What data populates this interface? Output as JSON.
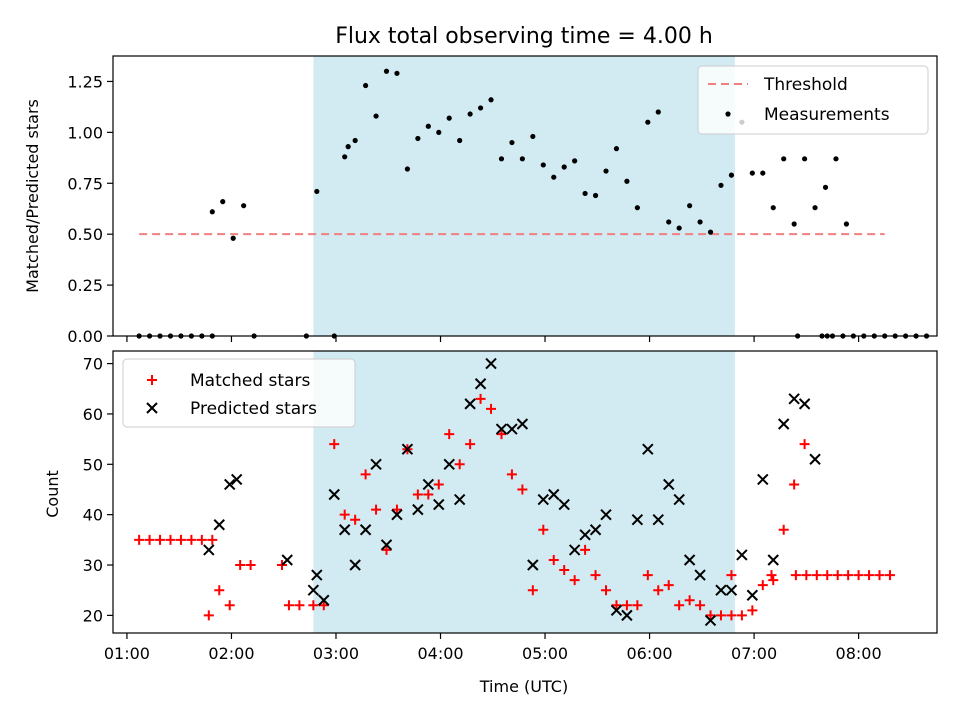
{
  "chart_data": [
    {
      "type": "scatter",
      "title": "Flux total observing time = 4.00 h",
      "xlabel": "",
      "ylabel": "Matched/Predicted stars",
      "xlim": [
        "00:52",
        "08:45"
      ],
      "ylim": [
        0,
        1.375
      ],
      "yticks": [
        "0.00",
        "0.25",
        "0.50",
        "0.75",
        "1.00",
        "1.25"
      ],
      "grid": false,
      "legend_position": "top-right",
      "legend": [
        "Threshold",
        "Measurements"
      ],
      "shaded_span": [
        "02:47",
        "06:49"
      ],
      "colors": {
        "threshold": "#f08080",
        "measurements": "#000000",
        "span": "#add8e6"
      },
      "series": [
        {
          "name": "Threshold",
          "type": "dashed-line",
          "x": [
            "01:07",
            "08:15"
          ],
          "y": [
            0.5,
            0.5
          ]
        },
        {
          "name": "Measurements",
          "type": "scatter",
          "points": [
            [
              "01:07",
              0
            ],
            [
              "01:13",
              0
            ],
            [
              "01:19",
              0
            ],
            [
              "01:25",
              0
            ],
            [
              "01:31",
              0
            ],
            [
              "01:37",
              0
            ],
            [
              "01:43",
              0
            ],
            [
              "01:49",
              0
            ],
            [
              "01:49",
              0.61
            ],
            [
              "01:55",
              0.66
            ],
            [
              "02:01",
              0.48
            ],
            [
              "02:07",
              0.64
            ],
            [
              "02:13",
              0
            ],
            [
              "02:43",
              0
            ],
            [
              "02:49",
              0.71
            ],
            [
              "02:59",
              0
            ],
            [
              "03:05",
              0.88
            ],
            [
              "03:07",
              0.93
            ],
            [
              "03:11",
              0.96
            ],
            [
              "03:17",
              1.23
            ],
            [
              "03:23",
              1.08
            ],
            [
              "03:29",
              1.3
            ],
            [
              "03:35",
              1.29
            ],
            [
              "03:41",
              0.82
            ],
            [
              "03:47",
              0.97
            ],
            [
              "03:53",
              1.03
            ],
            [
              "03:59",
              1.0
            ],
            [
              "04:05",
              1.07
            ],
            [
              "04:11",
              0.96
            ],
            [
              "04:17",
              1.09
            ],
            [
              "04:23",
              1.12
            ],
            [
              "04:29",
              1.16
            ],
            [
              "04:35",
              0.87
            ],
            [
              "04:41",
              0.95
            ],
            [
              "04:47",
              0.87
            ],
            [
              "04:53",
              0.98
            ],
            [
              "04:59",
              0.84
            ],
            [
              "05:05",
              0.78
            ],
            [
              "05:11",
              0.83
            ],
            [
              "05:17",
              0.86
            ],
            [
              "05:23",
              0.7
            ],
            [
              "05:29",
              0.69
            ],
            [
              "05:35",
              0.81
            ],
            [
              "05:41",
              0.92
            ],
            [
              "05:47",
              0.76
            ],
            [
              "05:53",
              0.63
            ],
            [
              "05:59",
              1.05
            ],
            [
              "06:05",
              1.1
            ],
            [
              "06:11",
              0.56
            ],
            [
              "06:17",
              0.53
            ],
            [
              "06:23",
              0.64
            ],
            [
              "06:29",
              0.56
            ],
            [
              "06:35",
              0.51
            ],
            [
              "06:41",
              0.74
            ],
            [
              "06:47",
              0.79
            ],
            [
              "06:53",
              1.05
            ],
            [
              "06:59",
              0.8
            ],
            [
              "07:05",
              0.8
            ],
            [
              "07:11",
              0.63
            ],
            [
              "07:17",
              0.87
            ],
            [
              "07:23",
              0.55
            ],
            [
              "07:29",
              0.87
            ],
            [
              "07:35",
              0.63
            ],
            [
              "07:41",
              0.73
            ],
            [
              "07:47",
              0.87
            ],
            [
              "07:53",
              0.55
            ],
            [
              "07:25",
              0
            ],
            [
              "07:39",
              0
            ],
            [
              "07:42",
              0
            ],
            [
              "07:45",
              0
            ],
            [
              "07:51",
              0
            ],
            [
              "07:57",
              0
            ],
            [
              "08:03",
              0
            ],
            [
              "08:09",
              0
            ],
            [
              "08:15",
              0
            ],
            [
              "08:21",
              0
            ],
            [
              "08:27",
              0
            ],
            [
              "08:33",
              0
            ],
            [
              "08:39",
              0
            ]
          ]
        }
      ]
    },
    {
      "type": "scatter",
      "title": "",
      "xlabel": "Time (UTC)",
      "ylabel": "Count",
      "xlim": [
        "00:52",
        "08:45"
      ],
      "ylim": [
        16.5,
        72.5
      ],
      "yticks": [
        "20",
        "30",
        "40",
        "50",
        "60",
        "70"
      ],
      "xticks": [
        "01:00",
        "02:00",
        "03:00",
        "04:00",
        "05:00",
        "06:00",
        "07:00",
        "08:00"
      ],
      "grid": false,
      "legend_position": "top-left",
      "legend": [
        "Matched stars",
        "Predicted stars"
      ],
      "shaded_span": [
        "02:47",
        "06:49"
      ],
      "colors": {
        "matched": "#ff0000",
        "predicted": "#000000",
        "span": "#add8e6"
      },
      "series": [
        {
          "name": "Matched stars",
          "marker": "plus",
          "points": [
            [
              "01:07",
              35
            ],
            [
              "01:13",
              35
            ],
            [
              "01:19",
              35
            ],
            [
              "01:25",
              35
            ],
            [
              "01:31",
              35
            ],
            [
              "01:37",
              35
            ],
            [
              "01:43",
              35
            ],
            [
              "01:49",
              35
            ],
            [
              "01:47",
              20
            ],
            [
              "01:53",
              25
            ],
            [
              "01:59",
              22
            ],
            [
              "02:05",
              30
            ],
            [
              "02:11",
              30
            ],
            [
              "02:29",
              30
            ],
            [
              "02:33",
              22
            ],
            [
              "02:39",
              22
            ],
            [
              "02:47",
              22
            ],
            [
              "02:53",
              22
            ],
            [
              "02:59",
              54
            ],
            [
              "03:05",
              40
            ],
            [
              "03:11",
              39
            ],
            [
              "03:17",
              48
            ],
            [
              "03:23",
              41
            ],
            [
              "03:29",
              33
            ],
            [
              "03:35",
              41
            ],
            [
              "03:41",
              53
            ],
            [
              "03:47",
              44
            ],
            [
              "03:53",
              44
            ],
            [
              "03:59",
              46
            ],
            [
              "04:05",
              56
            ],
            [
              "04:11",
              50
            ],
            [
              "04:17",
              54
            ],
            [
              "04:23",
              63
            ],
            [
              "04:29",
              61
            ],
            [
              "04:35",
              56
            ],
            [
              "04:41",
              48
            ],
            [
              "04:47",
              45
            ],
            [
              "04:53",
              25
            ],
            [
              "04:59",
              37
            ],
            [
              "05:05",
              31
            ],
            [
              "05:11",
              29
            ],
            [
              "05:17",
              27
            ],
            [
              "05:23",
              33
            ],
            [
              "05:29",
              28
            ],
            [
              "05:35",
              25
            ],
            [
              "05:41",
              22
            ],
            [
              "05:47",
              22
            ],
            [
              "05:53",
              22
            ],
            [
              "05:59",
              28
            ],
            [
              "06:05",
              25
            ],
            [
              "06:11",
              26
            ],
            [
              "06:17",
              22
            ],
            [
              "06:23",
              23
            ],
            [
              "06:29",
              22
            ],
            [
              "06:35",
              20
            ],
            [
              "06:41",
              20
            ],
            [
              "06:47",
              20
            ],
            [
              "06:53",
              20
            ],
            [
              "06:59",
              21
            ],
            [
              "07:05",
              26
            ],
            [
              "07:11",
              27
            ],
            [
              "07:17",
              37
            ],
            [
              "07:23",
              46
            ],
            [
              "07:29",
              54
            ],
            [
              "06:47",
              28
            ],
            [
              "07:10",
              28
            ],
            [
              "07:24",
              28
            ],
            [
              "07:30",
              28
            ],
            [
              "07:36",
              28
            ],
            [
              "07:42",
              28
            ],
            [
              "07:48",
              28
            ],
            [
              "07:54",
              28
            ],
            [
              "08:00",
              28
            ],
            [
              "08:06",
              28
            ],
            [
              "08:12",
              28
            ],
            [
              "08:18",
              28
            ]
          ]
        },
        {
          "name": "Predicted stars",
          "marker": "x",
          "points": [
            [
              "01:47",
              33
            ],
            [
              "01:53",
              38
            ],
            [
              "01:59",
              46
            ],
            [
              "02:03",
              47
            ],
            [
              "02:32",
              31
            ],
            [
              "02:47",
              25
            ],
            [
              "02:49",
              28
            ],
            [
              "02:53",
              23
            ],
            [
              "02:59",
              44
            ],
            [
              "03:05",
              37
            ],
            [
              "03:11",
              30
            ],
            [
              "03:17",
              37
            ],
            [
              "03:23",
              50
            ],
            [
              "03:29",
              34
            ],
            [
              "03:35",
              40
            ],
            [
              "03:41",
              53
            ],
            [
              "03:47",
              41
            ],
            [
              "03:53",
              46
            ],
            [
              "03:59",
              42
            ],
            [
              "04:05",
              50
            ],
            [
              "04:11",
              43
            ],
            [
              "04:17",
              62
            ],
            [
              "04:23",
              66
            ],
            [
              "04:29",
              70
            ],
            [
              "04:35",
              57
            ],
            [
              "04:41",
              57
            ],
            [
              "04:47",
              58
            ],
            [
              "04:53",
              30
            ],
            [
              "04:59",
              43
            ],
            [
              "05:05",
              44
            ],
            [
              "05:11",
              42
            ],
            [
              "05:17",
              33
            ],
            [
              "05:23",
              36
            ],
            [
              "05:29",
              37
            ],
            [
              "05:35",
              40
            ],
            [
              "05:41",
              21
            ],
            [
              "05:47",
              20
            ],
            [
              "05:53",
              39
            ],
            [
              "05:59",
              53
            ],
            [
              "06:05",
              39
            ],
            [
              "06:11",
              46
            ],
            [
              "06:17",
              43
            ],
            [
              "06:23",
              31
            ],
            [
              "06:29",
              28
            ],
            [
              "06:35",
              19
            ],
            [
              "06:41",
              25
            ],
            [
              "06:47",
              25
            ],
            [
              "06:53",
              32
            ],
            [
              "06:59",
              24
            ],
            [
              "07:05",
              47
            ],
            [
              "07:11",
              31
            ],
            [
              "07:17",
              58
            ],
            [
              "07:23",
              63
            ],
            [
              "07:29",
              62
            ],
            [
              "07:35",
              51
            ]
          ]
        }
      ]
    }
  ]
}
